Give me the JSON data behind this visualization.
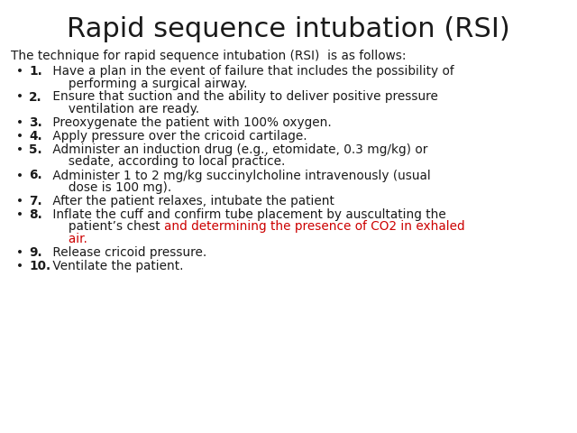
{
  "title": "Rapid sequence intubation (RSI)",
  "title_fontsize": 22,
  "body_fontsize": 9.8,
  "intro": "The technique for rapid sequence intubation (RSI)  is as follows:",
  "background_color": "#ffffff",
  "text_color": "#1a1a1a",
  "red_color": "#cc0000",
  "bullet": "•",
  "items": [
    {
      "number": "1.",
      "lines": [
        {
          "text": " Have a plan in the event of failure that includes the possibility of",
          "color": "black"
        },
        {
          "text": "     performing a surgical airway.",
          "color": "black"
        }
      ]
    },
    {
      "number": "2.",
      "lines": [
        {
          "text": " Ensure that suction and the ability to deliver positive pressure",
          "color": "black"
        },
        {
          "text": "     ventilation are ready.",
          "color": "black"
        }
      ]
    },
    {
      "number": "3.",
      "lines": [
        {
          "text": " Preoxygenate the patient with 100% oxygen.",
          "color": "black"
        }
      ]
    },
    {
      "number": "4.",
      "lines": [
        {
          "text": " Apply pressure over the cricoid cartilage.",
          "color": "black"
        }
      ]
    },
    {
      "number": "5.",
      "lines": [
        {
          "text": " Administer an induction drug (e.g., etomidate, 0.3 mg/kg) or",
          "color": "black"
        },
        {
          "text": "     sedate, according to local practice.",
          "color": "black"
        }
      ]
    },
    {
      "number": "6.",
      "lines": [
        {
          "text": " Administer 1 to 2 mg/kg succinylcholine intravenously (usual",
          "color": "black"
        },
        {
          "text": "     dose is 100 mg).",
          "color": "black"
        }
      ]
    },
    {
      "number": "7.",
      "lines": [
        {
          "text": " After the patient relaxes, intubate the patient",
          "color": "black"
        }
      ]
    },
    {
      "number": "8.",
      "lines": [
        {
          "text": " Inflate the cuff and confirm tube placement by auscultating the",
          "color": "black"
        },
        {
          "text": "     patient’s chest ",
          "color": "black",
          "append_red": "and determining the presence of CO2 in exhaled"
        },
        {
          "text": "     air.",
          "color": "red"
        }
      ]
    },
    {
      "number": "9.",
      "lines": [
        {
          "text": " Release cricoid pressure.",
          "color": "black"
        }
      ]
    },
    {
      "number": "10.",
      "lines": [
        {
          "text": " Ventilate the patient.",
          "color": "black"
        }
      ]
    }
  ]
}
